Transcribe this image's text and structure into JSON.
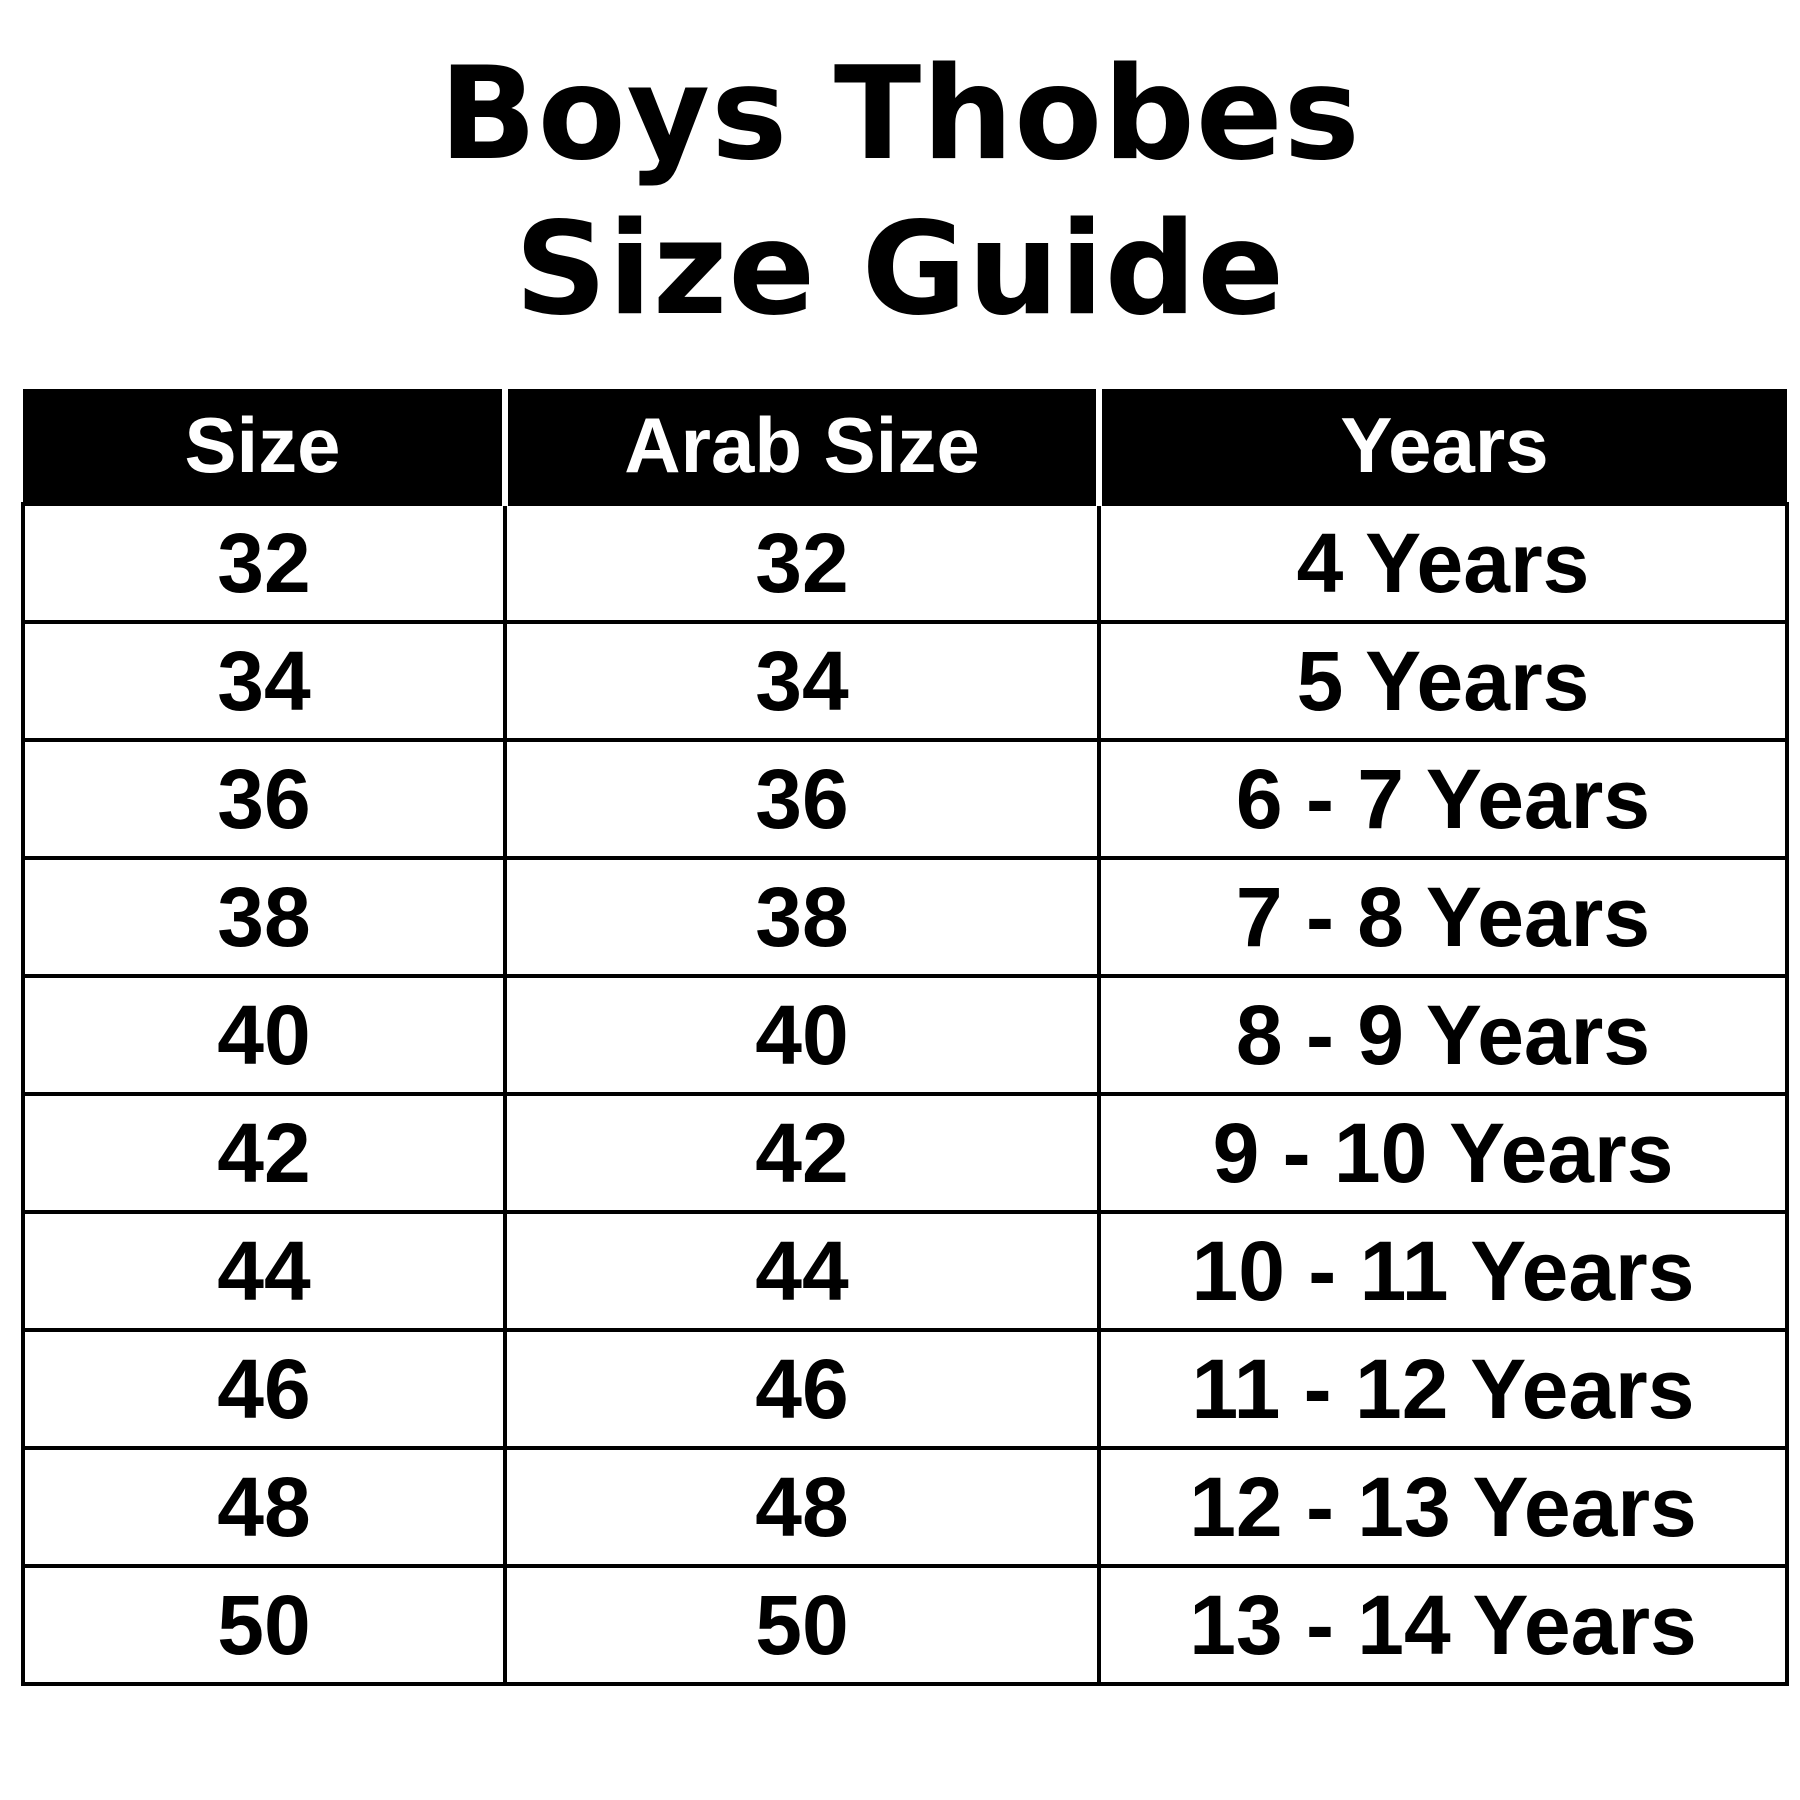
{
  "title": {
    "line1": "Boys Thobes",
    "line2": "Size Guide"
  },
  "table": {
    "headers": [
      "Size",
      "Arab Size",
      "Years"
    ],
    "rows": [
      [
        "32",
        "32",
        "4 Years"
      ],
      [
        "34",
        "34",
        "5 Years"
      ],
      [
        "36",
        "36",
        "6 - 7 Years"
      ],
      [
        "38",
        "38",
        "7 - 8 Years"
      ],
      [
        "40",
        "40",
        "8 - 9 Years"
      ],
      [
        "42",
        "42",
        "9 - 10 Years"
      ],
      [
        "44",
        "44",
        "10 - 11 Years"
      ],
      [
        "46",
        "46",
        "11 - 12 Years"
      ],
      [
        "48",
        "48",
        "12 - 13 Years"
      ],
      [
        "50",
        "50",
        "13 - 14 Years"
      ]
    ]
  },
  "colors": {
    "header_bg": "#000000",
    "header_text": "#ffffff",
    "text": "#000000"
  }
}
